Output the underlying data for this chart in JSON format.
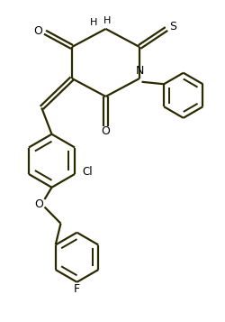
{
  "bg_color": "#ffffff",
  "line_color": "#2a2a00",
  "line_width": 1.6,
  "figsize": [
    2.5,
    3.57
  ],
  "dpi": 100,
  "xlim": [
    0,
    10
  ],
  "ylim": [
    0,
    14.28
  ]
}
